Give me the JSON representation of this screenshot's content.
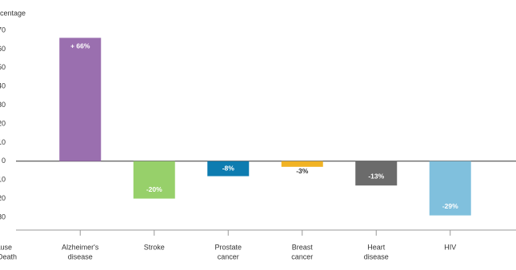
{
  "chart_data": {
    "type": "bar",
    "y_label": "Percentage",
    "x_label": [
      "Cause",
      "of Death"
    ],
    "categories": [
      [
        "Alzheimer's",
        "disease"
      ],
      [
        "Stroke"
      ],
      [
        "Prostate",
        "cancer"
      ],
      [
        "Breast",
        "cancer"
      ],
      [
        "Heart",
        "disease"
      ],
      [
        "HIV"
      ]
    ],
    "values": [
      66,
      -20,
      -8,
      -3,
      -13,
      -29
    ],
    "value_labels": [
      "+ 66%",
      "-20%",
      "-8%",
      "-3%",
      "-13%",
      "-29%"
    ],
    "colors": [
      "#9a6faf",
      "#97d06a",
      "#0d7cb0",
      "#f1b324",
      "#6b6b6b",
      "#80c0dd"
    ],
    "ylim": [
      -30,
      70
    ],
    "yticks": [
      -30,
      -20,
      -10,
      0,
      10,
      20,
      30,
      40,
      50,
      60,
      70
    ]
  }
}
